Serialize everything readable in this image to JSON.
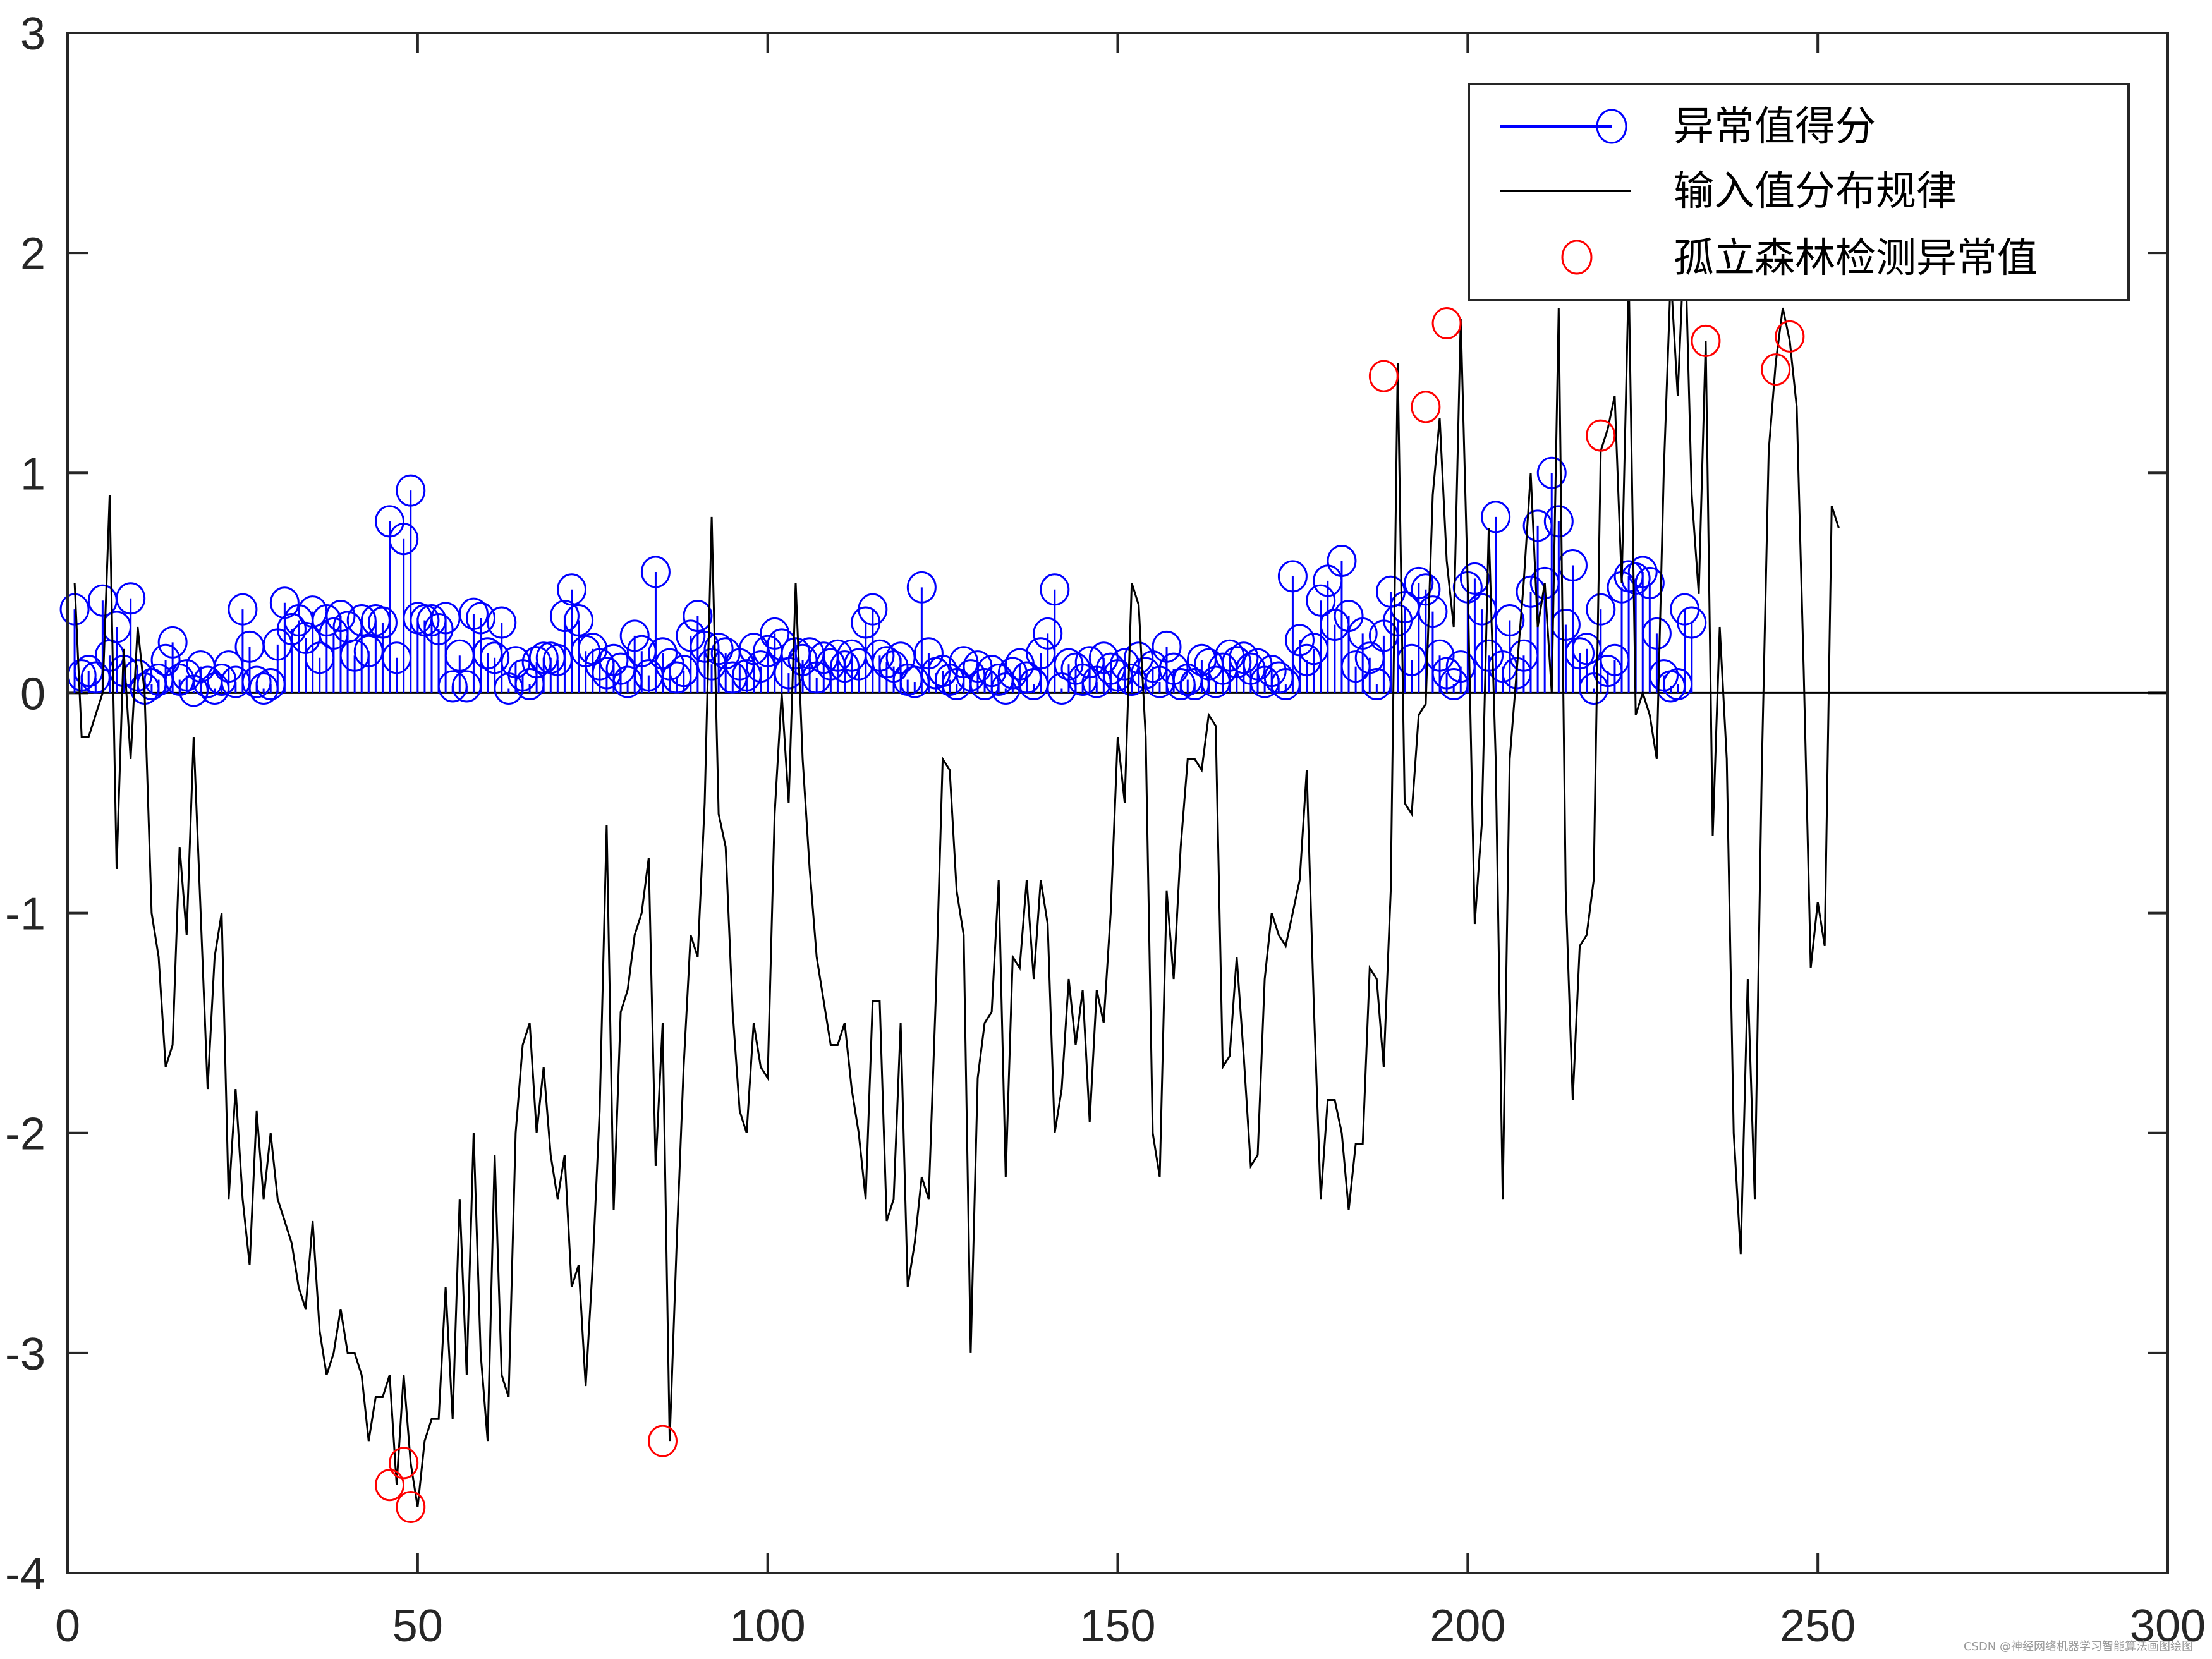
{
  "chart_data": {
    "type": "line",
    "title": "",
    "xlabel": "",
    "ylabel": "",
    "xlim": [
      0,
      300
    ],
    "ylim": [
      -4,
      3
    ],
    "xticks": [
      0,
      50,
      100,
      150,
      200,
      250,
      300
    ],
    "yticks": [
      -4,
      -3,
      -2,
      -1,
      0,
      1,
      2,
      3
    ],
    "grid": false,
    "legend_position": "upper right",
    "legend": [
      {
        "label": "异常值得分",
        "style": "stem",
        "color": "#0000ff",
        "marker": "circle"
      },
      {
        "label": "输入值分布规律",
        "style": "line",
        "color": "#000000"
      },
      {
        "label": "孤立森林检测异常值",
        "style": "marker",
        "color": "#ff0000",
        "marker": "circle"
      }
    ],
    "series": [
      {
        "name": "输入值分布规律",
        "x_start": 1,
        "values": [
          0.5,
          -0.2,
          -0.2,
          -0.1,
          0.0,
          0.9,
          -0.8,
          0.2,
          -0.3,
          0.3,
          0.0,
          -1.0,
          -1.2,
          -1.7,
          -1.6,
          -0.7,
          -1.1,
          -0.2,
          -1.0,
          -1.8,
          -1.2,
          -1.0,
          -2.3,
          -1.8,
          -2.3,
          -2.6,
          -1.9,
          -2.3,
          -2.0,
          -2.3,
          -2.4,
          -2.5,
          -2.7,
          -2.8,
          -2.4,
          -2.9,
          -3.1,
          -3.0,
          -2.8,
          -3.0,
          -3.0,
          -3.1,
          -3.4,
          -3.2,
          -3.2,
          -3.1,
          -3.6,
          -3.1,
          -3.5,
          -3.7,
          -3.4,
          -3.3,
          -3.3,
          -2.7,
          -3.3,
          -2.3,
          -3.1,
          -2.0,
          -3.0,
          -3.4,
          -2.1,
          -3.1,
          -3.2,
          -2.0,
          -1.6,
          -1.5,
          -2.0,
          -1.7,
          -2.1,
          -2.3,
          -2.1,
          -2.7,
          -2.6,
          -3.15,
          -2.6,
          -1.9,
          -0.6,
          -2.35,
          -1.45,
          -1.35,
          -1.1,
          -1.0,
          -0.75,
          -2.15,
          -1.5,
          -3.4,
          -2.5,
          -1.7,
          -1.1,
          -1.2,
          -0.5,
          0.8,
          -0.55,
          -0.7,
          -1.45,
          -1.9,
          -2.0,
          -1.5,
          -1.7,
          -1.75,
          -0.55,
          0.0,
          -0.5,
          0.5,
          -0.3,
          -0.8,
          -1.2,
          -1.4,
          -1.6,
          -1.6,
          -1.5,
          -1.8,
          -2.0,
          -2.3,
          -1.4,
          -1.4,
          -2.4,
          -2.3,
          -1.5,
          -2.7,
          -2.5,
          -2.2,
          -2.3,
          -1.4,
          -0.3,
          -0.35,
          -0.9,
          -1.1,
          -3.0,
          -1.75,
          -1.5,
          -1.45,
          -0.85,
          -2.2,
          -1.2,
          -1.25,
          -0.85,
          -1.3,
          -0.85,
          -1.05,
          -2.0,
          -1.8,
          -1.3,
          -1.6,
          -1.35,
          -1.95,
          -1.35,
          -1.5,
          -1.0,
          -0.2,
          -0.5,
          0.5,
          0.4,
          -0.2,
          -2.0,
          -2.2,
          -0.9,
          -1.3,
          -0.7,
          -0.3,
          -0.3,
          -0.35,
          -0.1,
          -0.15,
          -1.7,
          -1.65,
          -1.2,
          -1.65,
          -2.15,
          -2.1,
          -1.3,
          -1.0,
          -1.1,
          -1.15,
          -1.0,
          -0.85,
          -0.35,
          -1.4,
          -2.3,
          -1.85,
          -1.85,
          -2.0,
          -2.35,
          -2.05,
          -2.05,
          -1.25,
          -1.3,
          -1.7,
          -0.9,
          1.5,
          -0.5,
          -0.55,
          -0.1,
          -0.05,
          0.9,
          1.25,
          0.6,
          0.3,
          1.7,
          0.5,
          -1.05,
          -0.6,
          0.75,
          -0.3,
          -2.3,
          -0.3,
          0.1,
          0.5,
          1.0,
          0.3,
          0.5,
          0.0,
          1.75,
          -0.9,
          -1.85,
          -1.15,
          -1.1,
          -0.85,
          1.1,
          1.2,
          1.35,
          0.5,
          1.9,
          -0.1,
          0.0,
          -0.1,
          -0.3,
          1.0,
          1.9,
          1.35,
          2.1,
          0.9,
          0.45,
          1.6,
          -0.65,
          0.3,
          -0.3,
          -2.0,
          -2.55,
          -1.3,
          -2.3,
          -0.35,
          1.1,
          1.5,
          1.75,
          1.6,
          1.3,
          0.1,
          -1.25,
          -0.95,
          -1.15,
          0.85,
          0.75
        ]
      },
      {
        "name": "异常值得分",
        "x_start": 1,
        "values": [
          0.38,
          0.08,
          0.1,
          0.07,
          0.42,
          0.17,
          0.3,
          0.1,
          0.43,
          0.08,
          0.02,
          0.04,
          0.06,
          0.15,
          0.23,
          0.06,
          0.08,
          0.01,
          0.12,
          0.05,
          0.02,
          0.06,
          0.12,
          0.05,
          0.38,
          0.21,
          0.05,
          0.02,
          0.04,
          0.22,
          0.41,
          0.29,
          0.33,
          0.25,
          0.37,
          0.16,
          0.33,
          0.27,
          0.35,
          0.3,
          0.17,
          0.33,
          0.19,
          0.33,
          0.32,
          0.78,
          0.16,
          0.7,
          0.92,
          0.34,
          0.33,
          0.33,
          0.29,
          0.34,
          0.03,
          0.17,
          0.03,
          0.36,
          0.34,
          0.18,
          0.16,
          0.32,
          0.02,
          0.14,
          0.08,
          0.04,
          0.14,
          0.16,
          0.16,
          0.15,
          0.35,
          0.47,
          0.33,
          0.19,
          0.2,
          0.13,
          0.09,
          0.15,
          0.11,
          0.05,
          0.26,
          0.19,
          0.08,
          0.55,
          0.18,
          0.13,
          0.07,
          0.1,
          0.26,
          0.35,
          0.21,
          0.13,
          0.2,
          0.18,
          0.07,
          0.13,
          0.08,
          0.2,
          0.12,
          0.19,
          0.27,
          0.22,
          0.09,
          0.18,
          0.15,
          0.18,
          0.07,
          0.16,
          0.13,
          0.17,
          0.12,
          0.17,
          0.13,
          0.32,
          0.38,
          0.17,
          0.14,
          0.12,
          0.16,
          0.06,
          0.05,
          0.48,
          0.18,
          0.09,
          0.1,
          0.06,
          0.04,
          0.14,
          0.08,
          0.12,
          0.04,
          0.1,
          0.06,
          0.02,
          0.09,
          0.13,
          0.07,
          0.04,
          0.18,
          0.27,
          0.47,
          0.02,
          0.13,
          0.11,
          0.06,
          0.14,
          0.05,
          0.16,
          0.11,
          0.08,
          0.13,
          0.06,
          0.16,
          0.09,
          0.12,
          0.05,
          0.21,
          0.11,
          0.04,
          0.06,
          0.04,
          0.15,
          0.13,
          0.05,
          0.11,
          0.17,
          0.14,
          0.16,
          0.11,
          0.13,
          0.05,
          0.1,
          0.07,
          0.04,
          0.53,
          0.24,
          0.15,
          0.2,
          0.42,
          0.51,
          0.31,
          0.6,
          0.35,
          0.12,
          0.27,
          0.16,
          0.04,
          0.26,
          0.46,
          0.33,
          0.39,
          0.15,
          0.5,
          0.47,
          0.37,
          0.17,
          0.09,
          0.04,
          0.12,
          0.48,
          0.52,
          0.38,
          0.17,
          0.8,
          0.12,
          0.33,
          0.09,
          0.17,
          0.46,
          0.76,
          0.5,
          1.0,
          0.78,
          0.31,
          0.58,
          0.18,
          0.2,
          0.02,
          0.38,
          0.1,
          0.15,
          0.48,
          0.53,
          0.52,
          0.55,
          0.5,
          0.27,
          0.08,
          0.03,
          0.04,
          0.38,
          0.32
        ]
      },
      {
        "name": "孤立森林检测异常值",
        "points": [
          {
            "x": 46,
            "y": -3.6
          },
          {
            "x": 48,
            "y": -3.5
          },
          {
            "x": 49,
            "y": -3.7
          },
          {
            "x": 85,
            "y": -3.4
          },
          {
            "x": 188,
            "y": 1.44
          },
          {
            "x": 194,
            "y": 1.3
          },
          {
            "x": 197,
            "y": 1.68
          },
          {
            "x": 219,
            "y": 1.17
          },
          {
            "x": 234,
            "y": 1.6
          },
          {
            "x": 244,
            "y": 1.47
          },
          {
            "x": 246,
            "y": 1.62
          }
        ]
      }
    ]
  },
  "axes": {
    "x_tick_labels": [
      "0",
      "50",
      "100",
      "150",
      "200",
      "250",
      "300"
    ],
    "y_tick_labels": [
      "-4",
      "-3",
      "-2",
      "-1",
      "0",
      "1",
      "2",
      "3"
    ]
  },
  "legend": {
    "items": [
      "异常值得分",
      "输入值分布规律",
      "孤立森林检测异常值"
    ]
  },
  "watermark": "CSDN @神经网络机器学习智能算法画图绘图",
  "colors": {
    "stem": "#0000ff",
    "line": "#000000",
    "outlier": "#ff0000",
    "axis": "#262626"
  }
}
